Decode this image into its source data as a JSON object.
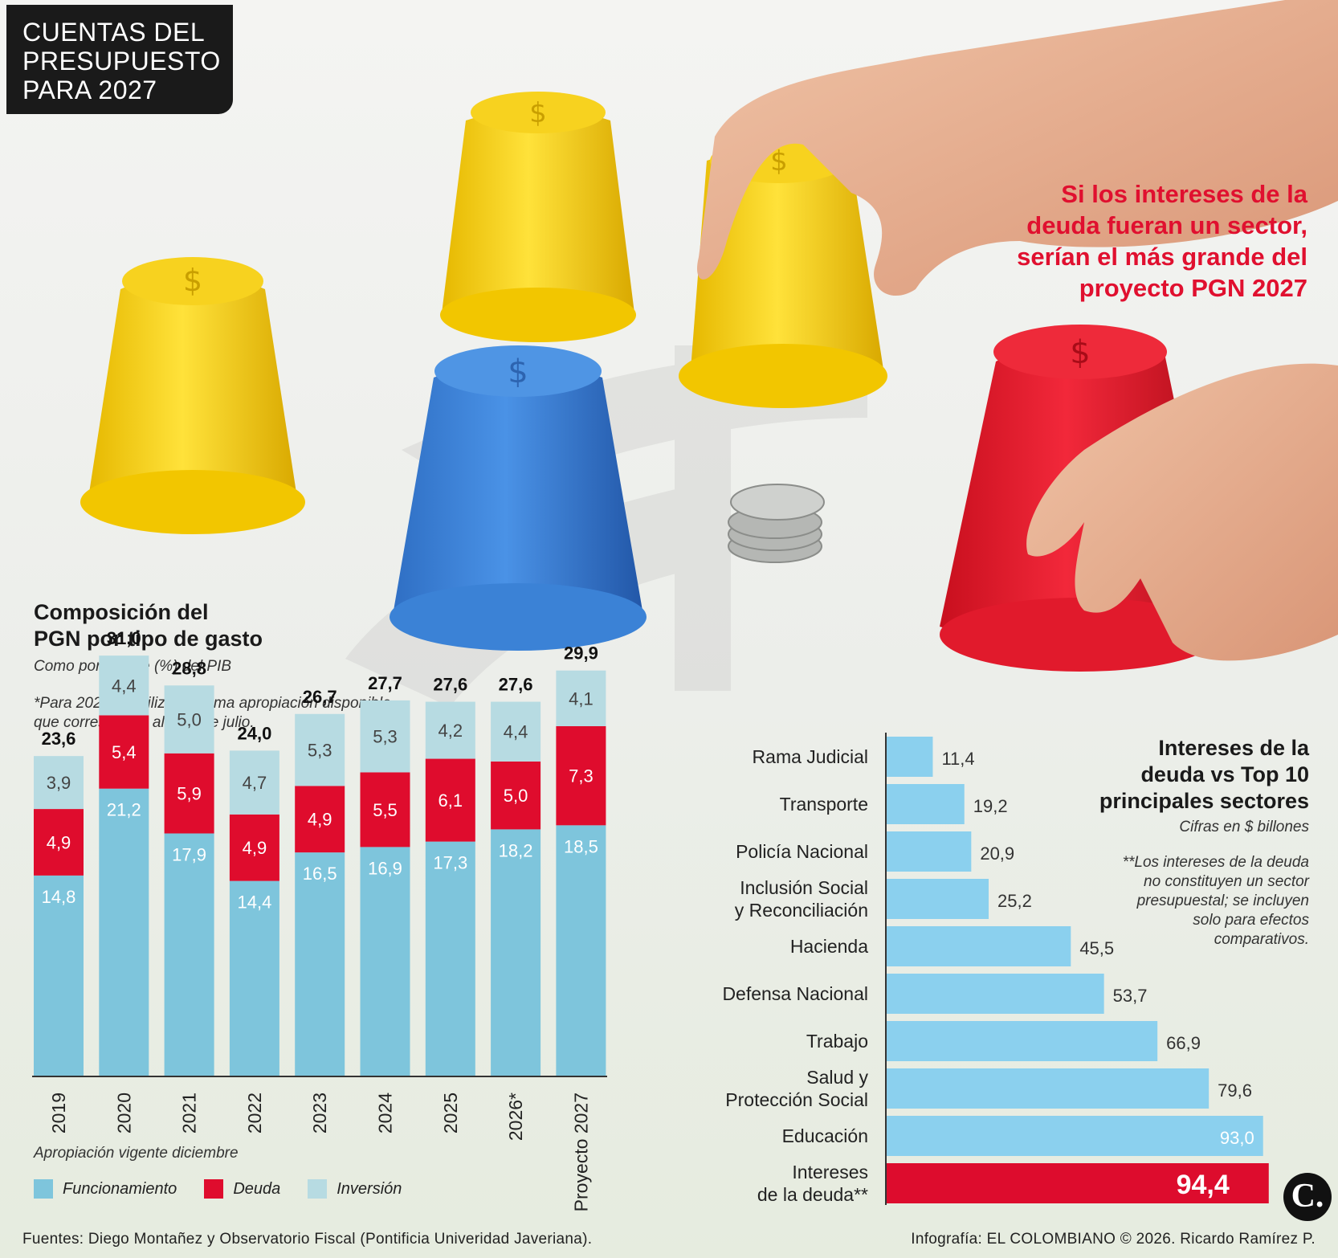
{
  "header": {
    "lines": [
      "CUENTAS DEL",
      "PRESUPUESTO",
      "PARA 2027"
    ]
  },
  "headline": {
    "lines": [
      "Si los intereses de la",
      "deuda fueran un sector,",
      "serían el más grande del",
      "proyecto PGN 2027"
    ]
  },
  "colors": {
    "funcionamiento": "#7ec5dc",
    "deuda": "#df0c2d",
    "inversion": "#b7dbe2",
    "sector_bar": "#8bd0ee",
    "highlight_bar": "#dd0c2d"
  },
  "left_chart": {
    "title_lines": [
      "Composición del",
      "PGN por tipo de gasto"
    ],
    "subtitle": "Como porcentaje (%) del PIB",
    "note_lines": [
      "*Para 2026 se utilizó la última apropiación disponible,",
      "que corresponde al mes de julio."
    ],
    "footnote": "Apropiación vigente diciembre",
    "legend": [
      "Funcionamiento",
      "Deuda",
      "Inversión"
    ]
  },
  "right_chart": {
    "title_lines": [
      "Intereses de la",
      "deuda vs Top 10",
      "principales sectores"
    ],
    "subtitle": "Cifras en $ billones",
    "note_lines": [
      "**Los intereses de la deuda",
      "no constituyen un sector",
      "presupuestal; se incluyen",
      "solo para efectos",
      "comparativos."
    ]
  },
  "chart_data": [
    {
      "type": "bar",
      "stacked": true,
      "title": "Composición del PGN por tipo de gasto",
      "ylabel": "Como porcentaje (%) del PIB",
      "categories": [
        "2019",
        "2020",
        "2021",
        "2022",
        "2023",
        "2024",
        "2025",
        "2026*",
        "Proyecto 2027"
      ],
      "series": [
        {
          "name": "Funcionamiento",
          "values": [
            "14,8",
            "21,2",
            "17,9",
            "14,4",
            "16,5",
            "16,9",
            "17,3",
            "18,2",
            "18,5"
          ]
        },
        {
          "name": "Deuda",
          "values": [
            "4,9",
            "5,4",
            "5,9",
            "4,9",
            "4,9",
            "5,5",
            "6,1",
            "5,0",
            "7,3"
          ]
        },
        {
          "name": "Inversión",
          "values": [
            "3,9",
            "4,4",
            "5,0",
            "4,7",
            "5,3",
            "5,3",
            "4,2",
            "4,4",
            "4,1"
          ]
        }
      ],
      "totals": [
        "23,6",
        "31,0",
        "28,8",
        "24,0",
        "26,7",
        "27,7",
        "27,6",
        "27,6",
        "29,9"
      ]
    },
    {
      "type": "bar",
      "orientation": "horizontal",
      "title": "Intereses de la deuda vs Top 10 principales sectores",
      "unit": "Cifras en $ billones",
      "categories": [
        [
          "Rama Judicial"
        ],
        [
          "Transporte"
        ],
        [
          "Policía Nacional"
        ],
        [
          "Inclusión Social",
          "y Reconciliación"
        ],
        [
          "Hacienda"
        ],
        [
          "Defensa Nacional"
        ],
        [
          "Trabajo"
        ],
        [
          "Salud y",
          "Protección Social"
        ],
        [
          "Educación"
        ],
        [
          "Intereses",
          "de la deuda**"
        ]
      ],
      "values": [
        "11,4",
        "19,2",
        "20,9",
        "25,2",
        "45,5",
        "53,7",
        "66,9",
        "79,6",
        "93,0",
        "94,4"
      ],
      "highlight_index": 9
    }
  ],
  "footer": {
    "sources": "Fuentes: Diego Montañez y Observatorio Fiscal (Pontificia Univeridad Javeriana).",
    "credit": "Infografía: EL COLOMBIANO © 2026. Ricardo Ramírez P.",
    "logo_letter": "C."
  }
}
